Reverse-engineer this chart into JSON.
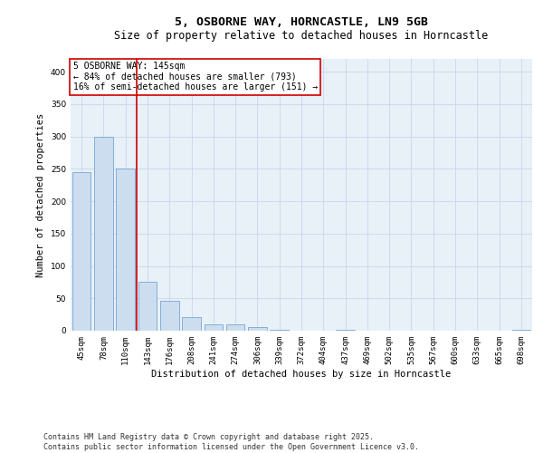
{
  "title_line1": "5, OSBORNE WAY, HORNCASTLE, LN9 5GB",
  "title_line2": "Size of property relative to detached houses in Horncastle",
  "xlabel": "Distribution of detached houses by size in Horncastle",
  "ylabel": "Number of detached properties",
  "categories": [
    "45sqm",
    "78sqm",
    "110sqm",
    "143sqm",
    "176sqm",
    "208sqm",
    "241sqm",
    "274sqm",
    "306sqm",
    "339sqm",
    "372sqm",
    "404sqm",
    "437sqm",
    "469sqm",
    "502sqm",
    "535sqm",
    "567sqm",
    "600sqm",
    "633sqm",
    "665sqm",
    "698sqm"
  ],
  "values": [
    245,
    300,
    250,
    75,
    46,
    21,
    10,
    10,
    6,
    2,
    0,
    0,
    2,
    0,
    0,
    0,
    0,
    0,
    0,
    0,
    2
  ],
  "bar_color": "#ccddf0",
  "bar_edge_color": "#6699cc",
  "vline_color": "#cc0000",
  "annotation_text": "5 OSBORNE WAY: 145sqm\n← 84% of detached houses are smaller (793)\n16% of semi-detached houses are larger (151) →",
  "annotation_box_color": "#cc0000",
  "ylim": [
    0,
    420
  ],
  "yticks": [
    0,
    50,
    100,
    150,
    200,
    250,
    300,
    350,
    400
  ],
  "grid_color": "#c8d8e8",
  "background_color": "#e8f0f8",
  "footer_text": "Contains HM Land Registry data © Crown copyright and database right 2025.\nContains public sector information licensed under the Open Government Licence v3.0.",
  "title_fontsize": 9.5,
  "subtitle_fontsize": 8.5,
  "xlabel_fontsize": 7.5,
  "ylabel_fontsize": 7.5,
  "tick_fontsize": 6.5,
  "annotation_fontsize": 7,
  "footer_fontsize": 6
}
